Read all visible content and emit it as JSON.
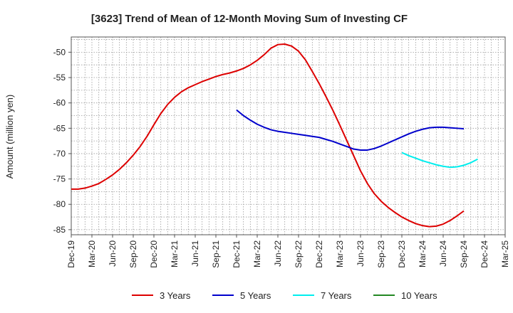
{
  "chart_data": {
    "type": "line",
    "title": "[3623]  Trend of Mean of 12-Month Moving Sum of Investing CF",
    "xlabel": "",
    "ylabel": "Amount (million yen)",
    "ylim": [
      -86,
      -47
    ],
    "yticks": [
      -50,
      -55,
      -60,
      -65,
      -70,
      -75,
      -80,
      -85
    ],
    "x_tick_labels": [
      "Dec-19",
      "Mar-20",
      "Jun-20",
      "Sep-20",
      "Dec-20",
      "Mar-21",
      "Jun-21",
      "Sep-21",
      "Dec-21",
      "Mar-22",
      "Jun-22",
      "Sep-22",
      "Dec-22",
      "Mar-23",
      "Jun-23",
      "Sep-23",
      "Dec-23",
      "Mar-24",
      "Jun-24",
      "Sep-24",
      "Dec-24",
      "Mar-25"
    ],
    "grid": true,
    "legend_position": "bottom",
    "series": [
      {
        "name": "3 Years",
        "color": "#dd0000",
        "points": [
          [
            0,
            -77.0
          ],
          [
            1,
            -77.0
          ],
          [
            2,
            -76.8
          ],
          [
            3,
            -76.4
          ],
          [
            4,
            -75.9
          ],
          [
            5,
            -75.1
          ],
          [
            6,
            -74.2
          ],
          [
            7,
            -73.1
          ],
          [
            8,
            -71.8
          ],
          [
            9,
            -70.3
          ],
          [
            10,
            -68.6
          ],
          [
            11,
            -66.6
          ],
          [
            12,
            -64.3
          ],
          [
            13,
            -62.1
          ],
          [
            14,
            -60.3
          ],
          [
            15,
            -58.9
          ],
          [
            16,
            -57.8
          ],
          [
            17,
            -57.0
          ],
          [
            18,
            -56.4
          ],
          [
            19,
            -55.8
          ],
          [
            20,
            -55.3
          ],
          [
            21,
            -54.8
          ],
          [
            22,
            -54.4
          ],
          [
            23,
            -54.1
          ],
          [
            24,
            -53.7
          ],
          [
            25,
            -53.2
          ],
          [
            26,
            -52.5
          ],
          [
            27,
            -51.6
          ],
          [
            28,
            -50.5
          ],
          [
            29,
            -49.2
          ],
          [
            30,
            -48.5
          ],
          [
            31,
            -48.4
          ],
          [
            32,
            -48.8
          ],
          [
            33,
            -49.8
          ],
          [
            34,
            -51.5
          ],
          [
            35,
            -53.8
          ],
          [
            36,
            -56.2
          ],
          [
            37,
            -58.8
          ],
          [
            38,
            -61.5
          ],
          [
            39,
            -64.4
          ],
          [
            40,
            -67.4
          ],
          [
            41,
            -70.4
          ],
          [
            42,
            -73.4
          ],
          [
            43,
            -75.9
          ],
          [
            44,
            -77.9
          ],
          [
            45,
            -79.4
          ],
          [
            46,
            -80.6
          ],
          [
            47,
            -81.6
          ],
          [
            48,
            -82.5
          ],
          [
            49,
            -83.2
          ],
          [
            50,
            -83.8
          ],
          [
            51,
            -84.2
          ],
          [
            52,
            -84.4
          ],
          [
            53,
            -84.3
          ],
          [
            54,
            -83.9
          ],
          [
            55,
            -83.2
          ],
          [
            56,
            -82.3
          ],
          [
            57,
            -81.3
          ]
        ]
      },
      {
        "name": "5 Years",
        "color": "#0000cc",
        "points": [
          [
            24,
            -61.4
          ],
          [
            25,
            -62.5
          ],
          [
            26,
            -63.4
          ],
          [
            27,
            -64.2
          ],
          [
            28,
            -64.8
          ],
          [
            29,
            -65.3
          ],
          [
            30,
            -65.6
          ],
          [
            31,
            -65.8
          ],
          [
            32,
            -66.0
          ],
          [
            33,
            -66.2
          ],
          [
            34,
            -66.4
          ],
          [
            35,
            -66.6
          ],
          [
            36,
            -66.8
          ],
          [
            37,
            -67.2
          ],
          [
            38,
            -67.6
          ],
          [
            39,
            -68.1
          ],
          [
            40,
            -68.6
          ],
          [
            41,
            -69.1
          ],
          [
            42,
            -69.3
          ],
          [
            43,
            -69.3
          ],
          [
            44,
            -69.0
          ],
          [
            45,
            -68.5
          ],
          [
            46,
            -67.9
          ],
          [
            47,
            -67.3
          ],
          [
            48,
            -66.7
          ],
          [
            49,
            -66.1
          ],
          [
            50,
            -65.6
          ],
          [
            51,
            -65.2
          ],
          [
            52,
            -64.9
          ],
          [
            53,
            -64.8
          ],
          [
            54,
            -64.8
          ],
          [
            55,
            -64.9
          ],
          [
            56,
            -65.0
          ],
          [
            57,
            -65.1
          ]
        ]
      },
      {
        "name": "7 Years",
        "color": "#00eeee",
        "points": [
          [
            48,
            -69.8
          ],
          [
            49,
            -70.4
          ],
          [
            50,
            -70.9
          ],
          [
            51,
            -71.4
          ],
          [
            52,
            -71.8
          ],
          [
            53,
            -72.2
          ],
          [
            54,
            -72.5
          ],
          [
            55,
            -72.7
          ],
          [
            56,
            -72.6
          ],
          [
            57,
            -72.3
          ],
          [
            58,
            -71.8
          ],
          [
            59,
            -71.1
          ]
        ]
      },
      {
        "name": "10 Years",
        "color": "#228822",
        "points": []
      }
    ]
  }
}
